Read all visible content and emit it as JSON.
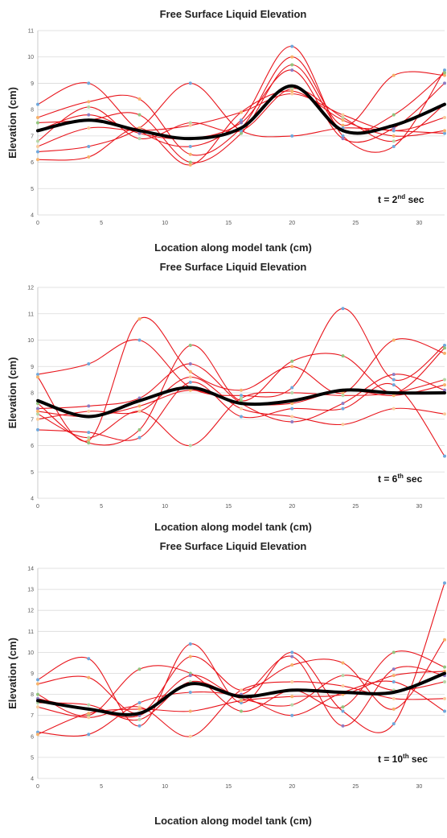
{
  "colors": {
    "series": "#e8141b",
    "mean": "#000000",
    "grid": "#d9d9d9",
    "markers": [
      "#6fa8dc",
      "#f6b26b",
      "#93c47d",
      "#8e7cc3",
      "#b6d7a8",
      "#f9cb9c"
    ]
  },
  "chart_data": [
    {
      "type": "line",
      "title": "Free Surface Liquid Elevation",
      "xlabel": "Location along model tank (cm)",
      "ylabel": "Elevation (cm)",
      "annotation": {
        "prefix": "t = 2",
        "sup": "nd",
        "suffix": " sec"
      },
      "xlim": [
        0,
        32
      ],
      "ylim": [
        4,
        11
      ],
      "grid": true,
      "xticks": [
        0,
        5,
        10,
        15,
        20,
        25,
        30
      ],
      "yticks": [
        4,
        5,
        6,
        7,
        8,
        9,
        10,
        11
      ],
      "x": [
        0,
        4,
        8,
        12,
        16,
        20,
        24,
        28,
        32
      ],
      "series": [
        {
          "values": [
            8.2,
            9.0,
            7.2,
            6.6,
            7.6,
            10.4,
            7.0,
            6.6,
            9.5
          ]
        },
        {
          "values": [
            7.7,
            8.3,
            8.4,
            6.3,
            7.3,
            10.0,
            7.4,
            9.3,
            9.3
          ]
        },
        {
          "values": [
            7.5,
            7.6,
            7.8,
            6.0,
            7.1,
            9.7,
            7.2,
            7.8,
            9.4
          ]
        },
        {
          "values": [
            7.2,
            7.8,
            7.1,
            6.9,
            7.5,
            9.5,
            6.9,
            7.3,
            9.0
          ]
        },
        {
          "values": [
            6.8,
            8.1,
            6.9,
            7.5,
            7.2,
            8.8,
            7.7,
            6.8,
            8.2
          ]
        },
        {
          "values": [
            6.6,
            7.3,
            7.2,
            7.4,
            7.9,
            8.6,
            7.8,
            7.2,
            7.7
          ]
        },
        {
          "values": [
            6.4,
            6.6,
            7.3,
            9.0,
            7.2,
            7.0,
            7.3,
            7.2,
            7.1
          ]
        },
        {
          "values": [
            6.1,
            6.2,
            7.3,
            5.9,
            7.9,
            8.7,
            7.6,
            7.0,
            7.2
          ]
        }
      ],
      "mean": [
        7.2,
        7.6,
        7.2,
        6.9,
        7.3,
        8.9,
        7.2,
        7.4,
        8.2
      ]
    },
    {
      "type": "line",
      "title": "Free Surface Liquid Elevation",
      "xlabel": "Location along model tank (cm)",
      "ylabel": "Elevation (cm)",
      "annotation": {
        "prefix": "t = 6",
        "sup": "th",
        "suffix": " sec"
      },
      "xlim": [
        0,
        32
      ],
      "ylim": [
        4,
        12
      ],
      "grid": true,
      "xticks": [
        0,
        5,
        10,
        15,
        20,
        25,
        30
      ],
      "yticks": [
        4,
        5,
        6,
        7,
        8,
        9,
        10,
        11,
        12
      ],
      "x": [
        0,
        4,
        8,
        12,
        16,
        20,
        24,
        28,
        32
      ],
      "series": [
        {
          "values": [
            8.7,
            9.1,
            10.0,
            8.2,
            7.9,
            8.2,
            11.2,
            8.5,
            9.8
          ]
        },
        {
          "values": [
            8.6,
            6.2,
            10.8,
            8.8,
            8.1,
            9.0,
            8.0,
            10.0,
            9.5
          ]
        },
        {
          "values": [
            7.6,
            6.1,
            6.6,
            9.8,
            7.7,
            9.2,
            9.4,
            8.0,
            9.7
          ]
        },
        {
          "values": [
            7.4,
            7.5,
            7.8,
            9.1,
            7.6,
            6.9,
            7.6,
            8.7,
            8.1
          ]
        },
        {
          "values": [
            7.2,
            6.3,
            7.3,
            6.0,
            7.8,
            8.0,
            7.9,
            8.0,
            8.5
          ]
        },
        {
          "values": [
            7.0,
            7.3,
            7.3,
            8.6,
            7.4,
            7.1,
            6.8,
            7.4,
            7.2
          ]
        },
        {
          "values": [
            6.6,
            6.5,
            6.3,
            8.4,
            7.1,
            7.4,
            7.4,
            8.3,
            5.6
          ]
        },
        {
          "values": [
            7.3,
            7.1,
            7.5,
            8.1,
            7.6,
            7.6,
            8.1,
            7.9,
            8.3
          ]
        }
      ],
      "mean": [
        7.7,
        7.1,
        7.7,
        8.2,
        7.6,
        7.7,
        8.1,
        8.0,
        8.0
      ]
    },
    {
      "type": "line",
      "title": "Free Surface Liquid Elevation",
      "xlabel": "Location along model tank (cm)",
      "ylabel": "Elevation (cm)",
      "annotation": {
        "prefix": "t = 10",
        "sup": "th",
        "suffix": " sec"
      },
      "xlim": [
        0,
        32
      ],
      "ylim": [
        4,
        14
      ],
      "grid": true,
      "xticks": [
        0,
        5,
        10,
        15,
        20,
        25,
        30
      ],
      "yticks": [
        4,
        5,
        6,
        7,
        8,
        9,
        10,
        11,
        12,
        13,
        14
      ],
      "x": [
        0,
        4,
        8,
        12,
        16,
        20,
        24,
        28,
        32
      ],
      "series": [
        {
          "values": [
            8.7,
            9.7,
            6.5,
            10.4,
            7.6,
            10.0,
            7.2,
            6.6,
            13.3
          ]
        },
        {
          "values": [
            8.5,
            8.8,
            7.1,
            9.8,
            8.2,
            9.4,
            9.5,
            7.3,
            10.6
          ]
        },
        {
          "values": [
            8.0,
            7.0,
            9.2,
            9.0,
            7.2,
            8.2,
            7.4,
            10.0,
            9.3
          ]
        },
        {
          "values": [
            7.8,
            7.3,
            7.0,
            8.9,
            8.0,
            9.8,
            6.5,
            9.2,
            8.9
          ]
        },
        {
          "values": [
            7.6,
            7.5,
            6.8,
            8.6,
            7.8,
            7.5,
            8.9,
            8.2,
            8.6
          ]
        },
        {
          "values": [
            7.4,
            6.9,
            7.4,
            6.0,
            8.2,
            8.6,
            8.4,
            7.8,
            7.8
          ]
        },
        {
          "values": [
            6.2,
            6.1,
            7.6,
            8.1,
            7.9,
            7.0,
            8.1,
            8.6,
            7.2
          ]
        },
        {
          "values": [
            6.1,
            7.1,
            7.3,
            7.2,
            7.7,
            7.9,
            8.0,
            8.9,
            9.1
          ]
        }
      ],
      "mean": [
        7.7,
        7.3,
        7.1,
        8.5,
        7.9,
        8.2,
        8.1,
        8.1,
        9.0
      ]
    }
  ]
}
